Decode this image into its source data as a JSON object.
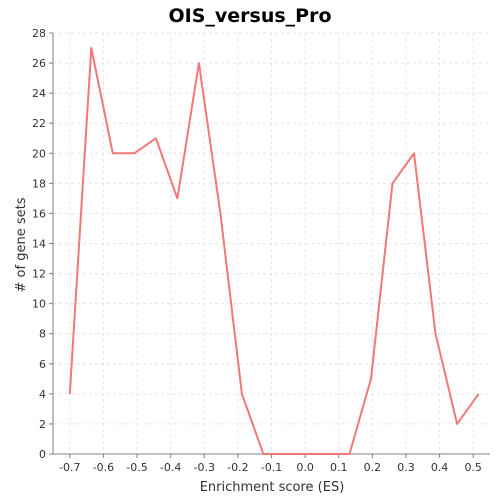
{
  "chart_data": {
    "type": "line",
    "title": "OIS_versus_Pro",
    "xlabel": "Enrichment score (ES)",
    "ylabel": "# of gene sets",
    "xlim": [
      -0.75,
      0.55
    ],
    "ylim": [
      0,
      28
    ],
    "x_ticks": [
      -0.7,
      -0.6,
      -0.5,
      -0.4,
      -0.3,
      -0.2,
      -0.1,
      0.0,
      0.1,
      0.2,
      0.3,
      0.4,
      0.5
    ],
    "x_tick_labels": [
      "-0.7",
      "-0.6",
      "-0.5",
      "-0.4",
      "-0.3",
      "-0.2",
      "-0.1",
      "0.0",
      "0.1",
      "0.2",
      "0.3",
      "0.4",
      "0.5"
    ],
    "y_ticks": [
      0,
      2,
      4,
      6,
      8,
      10,
      12,
      14,
      16,
      18,
      20,
      22,
      24,
      26,
      28
    ],
    "grid": true,
    "legend": "none",
    "series": [
      {
        "color": "#f07878",
        "x": [
          -0.7,
          -0.636,
          -0.572,
          -0.508,
          -0.444,
          -0.38,
          -0.316,
          -0.252,
          -0.188,
          -0.124,
          -0.06,
          0.004,
          0.068,
          0.132,
          0.196,
          0.26,
          0.324,
          0.388,
          0.452,
          0.516
        ],
        "y": [
          4,
          27,
          20,
          20,
          21,
          17,
          26,
          16,
          4,
          0,
          0,
          0,
          0,
          0,
          5,
          18,
          20,
          8,
          2,
          4
        ]
      }
    ]
  }
}
